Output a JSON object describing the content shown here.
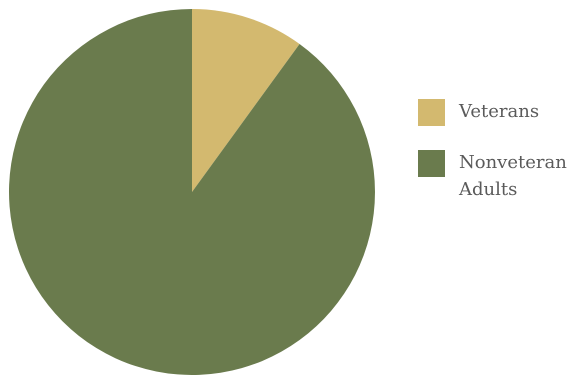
{
  "chart_data": {
    "type": "pie",
    "slices": [
      {
        "label": "Veterans",
        "value": 10,
        "color": "#d3b96f"
      },
      {
        "label": "Nonveteran Adults",
        "value": 90,
        "color": "#6a7b4d"
      }
    ],
    "start_angle": "12 o'clock",
    "direction": "clockwise",
    "legend_placement": "right",
    "title": ""
  }
}
